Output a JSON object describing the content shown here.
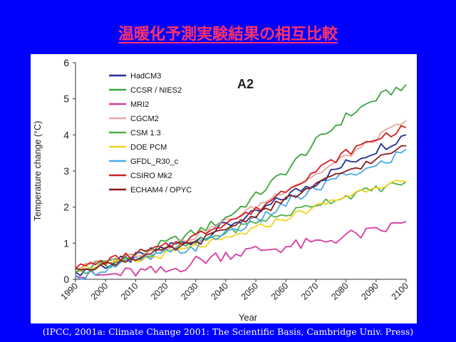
{
  "slide": {
    "title": "温暖化予測実験結果の相互比較",
    "citation": "(IPCC, 2001a: Climate Change 2001: The Scientific Basis, Cambridge Univ. Press)"
  },
  "colors": {
    "background": "#0000FF",
    "title": "#FF3366",
    "panel": "#FFFFFF"
  },
  "chart_data": {
    "type": "line",
    "title": "A2",
    "xlabel": "Year",
    "ylabel": "Temperature change (°C)",
    "xlim": [
      1990,
      2100
    ],
    "ylim": [
      0,
      6
    ],
    "x_ticks": [
      "1990",
      "2000",
      "2010",
      "2020",
      "2030",
      "2040",
      "2050",
      "2060",
      "2070",
      "2080",
      "2090",
      "2100"
    ],
    "y_ticks": [
      "0",
      "1",
      "2",
      "3",
      "4",
      "5",
      "6"
    ],
    "grid": false,
    "legend_position": "top-left",
    "x": [
      1990,
      2000,
      2010,
      2020,
      2030,
      2040,
      2050,
      2060,
      2070,
      2080,
      2090,
      2100
    ],
    "series": [
      {
        "name": "HadCM3",
        "color": "#1F2F8F",
        "values": [
          0.2,
          0.4,
          0.6,
          0.9,
          1.1,
          1.5,
          1.8,
          2.3,
          2.7,
          3.2,
          3.6,
          4.0
        ]
      },
      {
        "name": "CCSR / NIES2",
        "color": "#3DA33D",
        "values": [
          0.2,
          0.5,
          0.7,
          1.0,
          1.3,
          1.7,
          2.3,
          3.0,
          3.8,
          4.5,
          5.0,
          5.4
        ]
      },
      {
        "name": "MRI2",
        "color": "#D63AA0",
        "values": [
          0.1,
          0.1,
          0.2,
          0.2,
          0.5,
          0.7,
          0.8,
          0.9,
          1.0,
          1.2,
          1.3,
          1.6
        ]
      },
      {
        "name": "CGCM2",
        "color": "#E8A6A0",
        "values": [
          0.3,
          0.5,
          0.7,
          0.9,
          1.2,
          1.6,
          2.0,
          2.5,
          2.9,
          3.4,
          3.9,
          4.4
        ]
      },
      {
        "name": "CSM 1.3",
        "color": "#4CB04C",
        "values": [
          0.2,
          0.4,
          0.6,
          0.8,
          1.0,
          1.3,
          1.6,
          1.8,
          2.1,
          2.3,
          2.5,
          2.7
        ]
      },
      {
        "name": "DOE PCM",
        "color": "#F2D21B",
        "values": [
          0.3,
          0.4,
          0.5,
          0.7,
          0.9,
          1.1,
          1.4,
          1.7,
          2.0,
          2.3,
          2.6,
          2.7
        ]
      },
      {
        "name": "GFDL_R30_c",
        "color": "#48A9E6",
        "values": [
          0.1,
          0.3,
          0.5,
          0.7,
          0.9,
          1.3,
          1.6,
          2.1,
          2.5,
          2.9,
          3.1,
          3.6
        ]
      },
      {
        "name": "CSIRO Mk2",
        "color": "#D02020",
        "values": [
          0.3,
          0.5,
          0.7,
          0.9,
          1.2,
          1.6,
          1.9,
          2.5,
          3.0,
          3.5,
          3.9,
          4.2
        ]
      },
      {
        "name": "ECHAM4 / OPYC",
        "color": "#8B1A1A",
        "values": [
          0.3,
          0.4,
          0.6,
          0.8,
          1.0,
          1.4,
          1.8,
          2.2,
          2.6,
          3.0,
          3.3,
          3.7
        ]
      }
    ]
  }
}
